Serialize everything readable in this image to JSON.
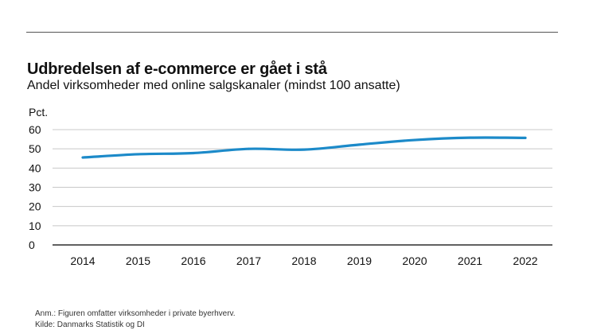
{
  "chart_data": {
    "type": "line",
    "title": "Udbredelsen af e-commerce er gået i stå",
    "subtitle": "Andel virksomheder med online salgskanaler (mindst 100 ansatte)",
    "ylabel": "Pct.",
    "xlabel": "",
    "ylim": [
      0,
      60
    ],
    "yticks": [
      0,
      10,
      20,
      30,
      40,
      50,
      60
    ],
    "grid": true,
    "categories": [
      "2014",
      "2015",
      "2016",
      "2017",
      "2018",
      "2019",
      "2020",
      "2021",
      "2022"
    ],
    "series": [
      {
        "values": [
          45.5,
          47.2,
          47.8,
          50.0,
          49.6,
          52.2,
          54.6,
          55.8,
          55.7
        ]
      }
    ],
    "line_color": "#1c8ac9",
    "grid_color": "#c8c8c8",
    "axis_color": "#000000"
  },
  "notes": {
    "anm": "Anm.: Figuren omfatter virksomheder i private byerhverv.",
    "kilde": "Kilde: Danmarks Statistik og DI"
  }
}
